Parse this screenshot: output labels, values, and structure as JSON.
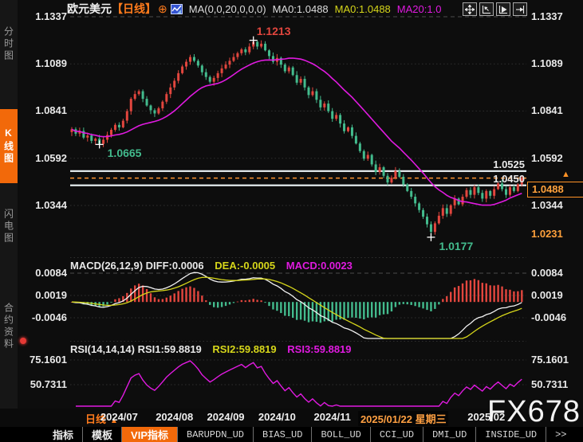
{
  "sidebar": {
    "tabs": [
      {
        "label": "分时图",
        "active": false
      },
      {
        "label": "K线图",
        "active": true
      },
      {
        "label": "闪电图",
        "active": false
      },
      {
        "label": "合约资料",
        "active": false
      }
    ]
  },
  "header": {
    "symbol": "欧元美元",
    "interval": "【日线】",
    "add_icon": "⊕",
    "ma_settings": "MA(0,0,20,0,0,0)",
    "ma0_a": "MA0:1.0488",
    "ma0_b": "MA0:1.0488",
    "ma20": "MA20:1.0"
  },
  "toolbar": {
    "icons": [
      "crosshair-tool-icon",
      "compress-x-icon",
      "expand-x-icon",
      "shift-right-icon"
    ]
  },
  "chart_data": {
    "type": "candlestick",
    "symbol": "欧元美元 (EUR/USD)",
    "interval": "日线",
    "y_axis_labels": [
      "1.1337",
      "1.1089",
      "1.0841",
      "1.0592",
      "1.0344"
    ],
    "closes": [
      1.0745,
      1.0722,
      1.0736,
      1.0701,
      1.0712,
      1.0684,
      1.0695,
      1.0668,
      1.069,
      1.0715,
      1.0742,
      1.0768,
      1.0755,
      1.079,
      1.084,
      1.0905,
      1.093,
      1.0945,
      1.0905,
      1.087,
      1.0845,
      1.0828,
      1.0855,
      1.089,
      1.093,
      1.0965,
      1.1,
      1.104,
      1.1075,
      1.11,
      1.1125,
      1.1105,
      1.108,
      1.1045,
      1.102,
      1.0995,
      1.1015,
      1.104,
      1.1065,
      1.1085,
      1.1105,
      1.1125,
      1.1145,
      1.1165,
      1.115,
      1.118,
      1.1205,
      1.118,
      1.1195,
      1.116,
      1.113,
      1.11,
      1.112,
      1.1085,
      1.105,
      1.107,
      1.103,
      1.099,
      1.101,
      1.0965,
      1.0925,
      1.0945,
      1.09,
      1.086,
      1.088,
      1.084,
      1.08,
      1.082,
      1.0775,
      1.0735,
      1.0755,
      1.071,
      1.067,
      1.063,
      1.059,
      1.061,
      1.056,
      1.052,
      1.0545,
      1.05,
      1.0465,
      1.049,
      1.0525,
      1.0495,
      1.0455,
      1.042,
      1.039,
      1.0355,
      1.032,
      1.0285,
      1.0245,
      1.0205,
      1.025,
      1.029,
      1.033,
      1.03,
      1.0345,
      1.038,
      1.035,
      1.039,
      1.0425,
      1.04,
      1.044,
      1.041,
      1.038,
      1.042,
      1.0395,
      1.043,
      1.046,
      1.043,
      1.04,
      1.044,
      1.042,
      1.0455,
      1.0488
    ],
    "markers": [
      {
        "i": 46,
        "price": 1.1213,
        "label": "1.1213",
        "kind": "high"
      },
      {
        "i": 7,
        "price": 1.0665,
        "label": "1.0665",
        "kind": "low"
      },
      {
        "i": 91,
        "price": 1.0177,
        "label": "1.0177",
        "kind": "low"
      }
    ],
    "levels": [
      {
        "price": 1.0525,
        "label": "1.0525"
      },
      {
        "price": 1.045,
        "label": "1.0450"
      }
    ],
    "current_price": {
      "label": "1.0488",
      "price": 1.0488,
      "arrow": "▲"
    },
    "low_badge": {
      "label": "1.0231",
      "price": 1.0231
    },
    "x_ticks": [
      {
        "label": "2024/07",
        "i": 12
      },
      {
        "label": "2024/08",
        "i": 26
      },
      {
        "label": "2024/09",
        "i": 39
      },
      {
        "label": "2024/10",
        "i": 52
      },
      {
        "label": "2024/11",
        "i": 66
      },
      {
        "label": "2025/01/22 星期三",
        "i": 84,
        "highlight": true
      },
      {
        "label": "2025/02",
        "i": 105
      }
    ],
    "macd": {
      "title": "MACD(26,12,9)",
      "diff_label": "DIFF:0.0006",
      "dea_label": "DEA:-0.0005",
      "macd_label": "MACD:0.0023",
      "axis_labels": [
        "0.0084",
        "0.0019",
        "-0.0046"
      ],
      "params": [
        26,
        12,
        9
      ]
    },
    "rsi": {
      "title": "RSI(14,14,14)",
      "rsi1_label": "RSI1:59.8819",
      "rsi2_label": "RSI2:59.8819",
      "rsi3_label": "RSI3:59.8819",
      "axis_labels": [
        "75.1601",
        "50.7311"
      ],
      "period": 14
    }
  },
  "footer": {
    "interval_button": {
      "label": "日线",
      "arrow": "▲"
    }
  },
  "tabbar": {
    "tabs": [
      {
        "label": "指标",
        "type": "cn",
        "active": false
      },
      {
        "label": "模板",
        "type": "cn",
        "active": false
      },
      {
        "label": "VIP指标",
        "type": "cn",
        "active": true
      },
      {
        "label": "BARUPDN_UD",
        "type": "mono",
        "active": false
      },
      {
        "label": "BIAS_UD",
        "type": "mono",
        "active": false
      },
      {
        "label": "BOLL_UD",
        "type": "mono",
        "active": false
      },
      {
        "label": "CCI_UD",
        "type": "mono",
        "active": false
      },
      {
        "label": "DMI_UD",
        "type": "mono",
        "active": false
      },
      {
        "label": "INSIDE_UD",
        "type": "mono",
        "active": false
      },
      {
        "label": ">>",
        "type": "mono",
        "active": false
      }
    ]
  },
  "watermark": "FX678",
  "colors": {
    "up": "#e2463e",
    "down": "#43bb8d",
    "ma20": "#e01ae0",
    "yellow": "#d6d61a",
    "diff_line": "#f2f2f2",
    "white_line": "#eef6f8",
    "orange_dash": "#ff9532",
    "orange": "#ff7b1c",
    "orange_bright": "#ffa13c",
    "grid": "#2f2f2f",
    "grid_dash": "#4a4a4a",
    "axis_text": "#e9e9e9",
    "magenta": "#e01ae0",
    "marker_cross": "#ffffff",
    "highlight_date": "#ffa042"
  }
}
